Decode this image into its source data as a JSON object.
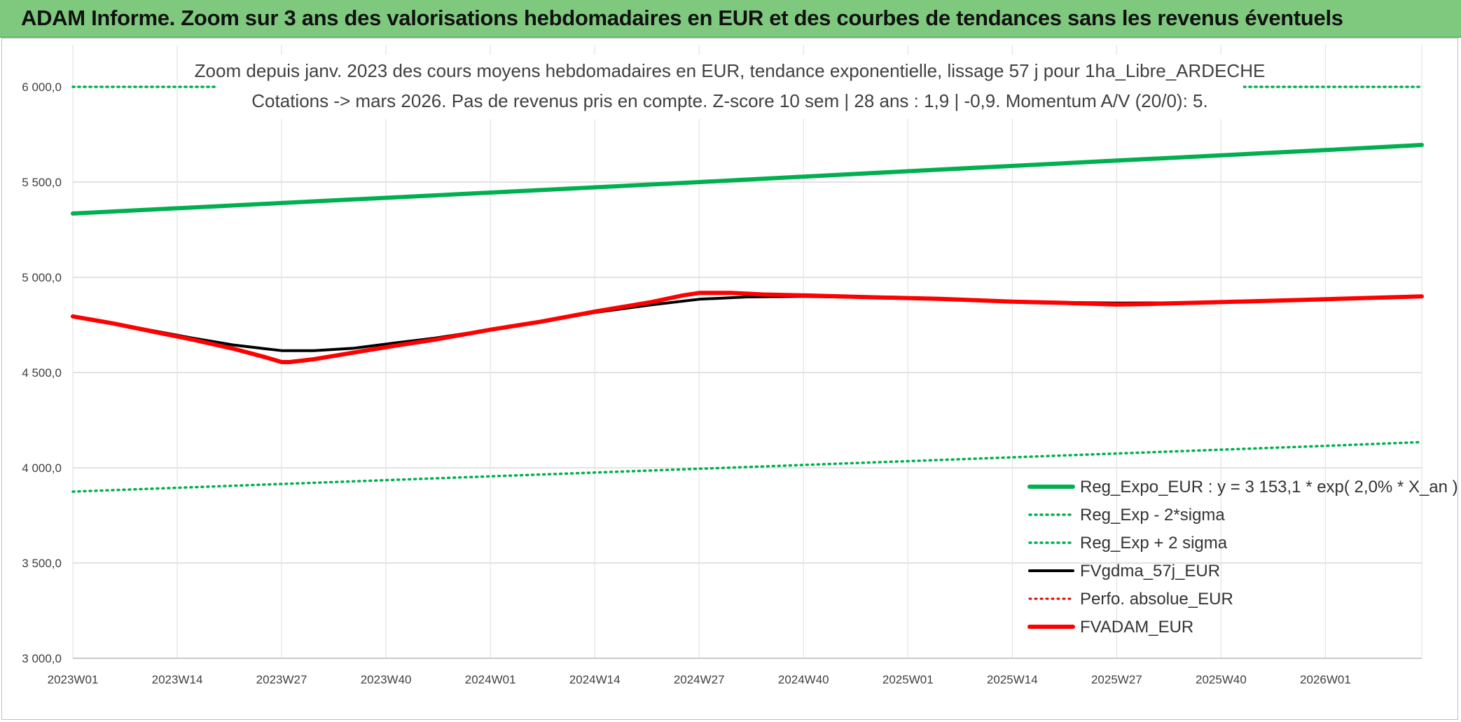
{
  "header": {
    "title": "ADAM Informe. Zoom sur 3 ans des valorisations hebdomadaires en EUR et des courbes de tendances sans les revenus éventuels"
  },
  "chart_data": {
    "type": "line",
    "title_line1": "Zoom depuis janv. 2023 des cours moyens hebdomadaires en EUR, tendance exponentielle, lissage 57 j pour 1ha_Libre_ARDECHE",
    "title_line2": "Cotations -> mars 2026. Pas de revenus pris en compte. Z-score 10 sem | 28 ans : 1,9 | -0,9. Momentum A/V (20/0): 5.",
    "ylim": [
      3000,
      6000
    ],
    "y_ticks": [
      {
        "value": 6000,
        "label": "6 000,0"
      },
      {
        "value": 5500,
        "label": "5 500,0"
      },
      {
        "value": 5000,
        "label": "5 000,0"
      },
      {
        "value": 4500,
        "label": "4 500,0"
      },
      {
        "value": 4000,
        "label": "4 000,0"
      },
      {
        "value": 3500,
        "label": "3 500,0"
      },
      {
        "value": 3000,
        "label": "3 000,0"
      }
    ],
    "x_range_weeks": [
      0,
      168
    ],
    "x_ticks": [
      {
        "week": 0,
        "label": "2023W01"
      },
      {
        "week": 13,
        "label": "2023W14"
      },
      {
        "week": 26,
        "label": "2023W27"
      },
      {
        "week": 39,
        "label": "2023W40"
      },
      {
        "week": 52,
        "label": "2024W01"
      },
      {
        "week": 65,
        "label": "2024W14"
      },
      {
        "week": 78,
        "label": "2024W27"
      },
      {
        "week": 91,
        "label": "2024W40"
      },
      {
        "week": 104,
        "label": "2025W01"
      },
      {
        "week": 117,
        "label": "2025W14"
      },
      {
        "week": 130,
        "label": "2025W27"
      },
      {
        "week": 143,
        "label": "2025W40"
      },
      {
        "week": 156,
        "label": "2026W01"
      }
    ],
    "grid": true,
    "legend_position": "bottom-right",
    "series": [
      {
        "name": "Reg_Expo_EUR : y = 3 153,1 * exp( 2,0% *  X_an )",
        "color": "#00b050",
        "style": "solid",
        "width": 6,
        "points": [
          [
            0,
            5335
          ],
          [
            26,
            5390
          ],
          [
            52,
            5445
          ],
          [
            78,
            5500
          ],
          [
            104,
            5557
          ],
          [
            130,
            5613
          ],
          [
            156,
            5668
          ],
          [
            168,
            5695
          ]
        ]
      },
      {
        "name": "Reg_Exp - 2*sigma",
        "color": "#00b050",
        "style": "dotted",
        "width": 3.5,
        "points": [
          [
            0,
            3875
          ],
          [
            26,
            3915
          ],
          [
            52,
            3955
          ],
          [
            78,
            3995
          ],
          [
            104,
            4035
          ],
          [
            130,
            4075
          ],
          [
            156,
            4115
          ],
          [
            168,
            4135
          ]
        ]
      },
      {
        "name": "Reg_Exp + 2 sigma",
        "color": "#00b050",
        "style": "dotted",
        "width": 3.5,
        "points": [
          [
            0,
            6000
          ],
          [
            168,
            6000
          ]
        ]
      },
      {
        "name": "FVgdma_57j_EUR",
        "color": "#000000",
        "style": "solid",
        "width": 4,
        "points": [
          [
            0,
            4792
          ],
          [
            5,
            4760
          ],
          [
            10,
            4720
          ],
          [
            15,
            4680
          ],
          [
            20,
            4645
          ],
          [
            26,
            4615
          ],
          [
            30,
            4615
          ],
          [
            35,
            4628
          ],
          [
            40,
            4655
          ],
          [
            45,
            4680
          ],
          [
            52,
            4725
          ],
          [
            58,
            4765
          ],
          [
            65,
            4815
          ],
          [
            72,
            4855
          ],
          [
            78,
            4885
          ],
          [
            84,
            4897
          ],
          [
            91,
            4900
          ],
          [
            100,
            4893
          ],
          [
            108,
            4887
          ],
          [
            117,
            4875
          ],
          [
            124,
            4868
          ],
          [
            130,
            4865
          ],
          [
            137,
            4866
          ],
          [
            145,
            4872
          ],
          [
            152,
            4880
          ],
          [
            160,
            4888
          ],
          [
            168,
            4900
          ]
        ]
      },
      {
        "name": "Perfo. absolue_EUR",
        "color": "#e00000",
        "style": "dotted",
        "width": 3,
        "points": []
      },
      {
        "name": "FVADAM_EUR",
        "color": "#ff0000",
        "style": "solid",
        "width": 6,
        "points": [
          [
            0,
            4795
          ],
          [
            5,
            4758
          ],
          [
            10,
            4715
          ],
          [
            15,
            4672
          ],
          [
            20,
            4625
          ],
          [
            24,
            4580
          ],
          [
            26,
            4555
          ],
          [
            27,
            4555
          ],
          [
            30,
            4570
          ],
          [
            35,
            4605
          ],
          [
            40,
            4640
          ],
          [
            45,
            4672
          ],
          [
            52,
            4725
          ],
          [
            58,
            4765
          ],
          [
            65,
            4820
          ],
          [
            72,
            4870
          ],
          [
            76,
            4905
          ],
          [
            78,
            4918
          ],
          [
            82,
            4918
          ],
          [
            86,
            4910
          ],
          [
            91,
            4905
          ],
          [
            100,
            4895
          ],
          [
            108,
            4887
          ],
          [
            117,
            4872
          ],
          [
            124,
            4865
          ],
          [
            128,
            4860
          ],
          [
            130,
            4857
          ],
          [
            134,
            4860
          ],
          [
            140,
            4867
          ],
          [
            145,
            4872
          ],
          [
            152,
            4880
          ],
          [
            160,
            4890
          ],
          [
            168,
            4900
          ]
        ]
      }
    ]
  }
}
